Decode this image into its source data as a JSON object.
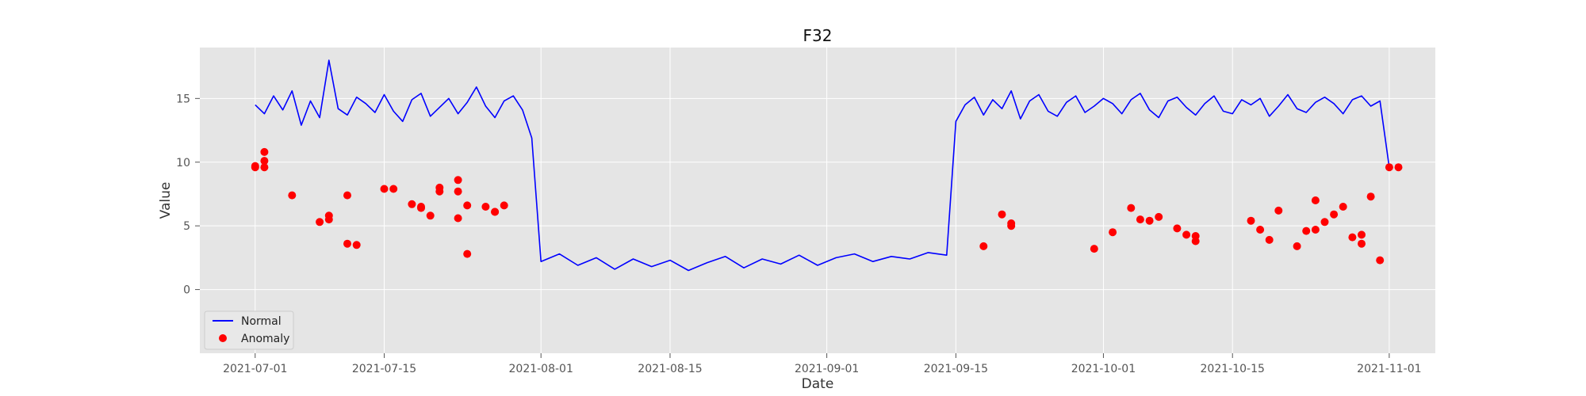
{
  "chart_data": {
    "type": "line",
    "title": "F32",
    "xlabel": "Date",
    "ylabel": "Value",
    "x_axis": "date",
    "xlim": [
      "2021-06-25",
      "2021-11-06"
    ],
    "ylim": [
      -5,
      19
    ],
    "grid": true,
    "legend_position": "bottom-left",
    "background_color": "#e5e5e5",
    "x_ticks": [
      "2021-07-01",
      "2021-07-15",
      "2021-08-01",
      "2021-08-15",
      "2021-09-01",
      "2021-09-15",
      "2021-10-01",
      "2021-10-15",
      "2021-11-01"
    ],
    "y_ticks": [
      0,
      5,
      10,
      15
    ],
    "series": [
      {
        "name": "Normal",
        "kind": "line",
        "color": "#0000ff",
        "x": [
          "2021-07-01",
          "2021-07-02",
          "2021-07-03",
          "2021-07-04",
          "2021-07-05",
          "2021-07-06",
          "2021-07-07",
          "2021-07-08",
          "2021-07-09",
          "2021-07-10",
          "2021-07-11",
          "2021-07-12",
          "2021-07-13",
          "2021-07-14",
          "2021-07-15",
          "2021-07-16",
          "2021-07-17",
          "2021-07-18",
          "2021-07-19",
          "2021-07-20",
          "2021-07-21",
          "2021-07-22",
          "2021-07-23",
          "2021-07-24",
          "2021-07-25",
          "2021-07-26",
          "2021-07-27",
          "2021-07-28",
          "2021-07-29",
          "2021-07-30",
          "2021-07-31",
          "2021-08-01",
          "2021-08-03",
          "2021-08-05",
          "2021-08-07",
          "2021-08-09",
          "2021-08-11",
          "2021-08-13",
          "2021-08-15",
          "2021-08-17",
          "2021-08-19",
          "2021-08-21",
          "2021-08-23",
          "2021-08-25",
          "2021-08-27",
          "2021-08-29",
          "2021-08-31",
          "2021-09-02",
          "2021-09-04",
          "2021-09-06",
          "2021-09-08",
          "2021-09-10",
          "2021-09-12",
          "2021-09-14",
          "2021-09-15",
          "2021-09-16",
          "2021-09-17",
          "2021-09-18",
          "2021-09-19",
          "2021-09-20",
          "2021-09-21",
          "2021-09-22",
          "2021-09-23",
          "2021-09-24",
          "2021-09-25",
          "2021-09-26",
          "2021-09-27",
          "2021-09-28",
          "2021-09-29",
          "2021-09-30",
          "2021-10-01",
          "2021-10-02",
          "2021-10-03",
          "2021-10-04",
          "2021-10-05",
          "2021-10-06",
          "2021-10-07",
          "2021-10-08",
          "2021-10-09",
          "2021-10-10",
          "2021-10-11",
          "2021-10-12",
          "2021-10-13",
          "2021-10-14",
          "2021-10-15",
          "2021-10-16",
          "2021-10-17",
          "2021-10-18",
          "2021-10-19",
          "2021-10-20",
          "2021-10-21",
          "2021-10-22",
          "2021-10-23",
          "2021-10-24",
          "2021-10-25",
          "2021-10-26",
          "2021-10-27",
          "2021-10-28",
          "2021-10-29",
          "2021-10-30",
          "2021-10-31",
          "2021-11-01"
        ],
        "y": [
          14.5,
          13.8,
          15.2,
          14.1,
          15.6,
          12.9,
          14.8,
          13.5,
          18.0,
          14.2,
          13.7,
          15.1,
          14.6,
          13.9,
          15.3,
          14.0,
          13.2,
          14.9,
          15.4,
          13.6,
          14.3,
          15.0,
          13.8,
          14.7,
          15.9,
          14.4,
          13.5,
          14.8,
          15.2,
          14.1,
          11.9,
          2.2,
          2.8,
          1.9,
          2.5,
          1.6,
          2.4,
          1.8,
          2.3,
          1.5,
          2.1,
          2.6,
          1.7,
          2.4,
          2.0,
          2.7,
          1.9,
          2.5,
          2.8,
          2.2,
          2.6,
          2.4,
          2.9,
          2.7,
          13.2,
          14.5,
          15.1,
          13.7,
          14.9,
          14.2,
          15.6,
          13.4,
          14.8,
          15.3,
          14.0,
          13.6,
          14.7,
          15.2,
          13.9,
          14.4,
          15.0,
          14.6,
          13.8,
          14.9,
          15.4,
          14.1,
          13.5,
          14.8,
          15.1,
          14.3,
          13.7,
          14.6,
          15.2,
          14.0,
          13.8,
          14.9,
          14.5,
          15.0,
          13.6,
          14.4,
          15.3,
          14.2,
          13.9,
          14.7,
          15.1,
          14.6,
          13.8,
          14.9,
          15.2,
          14.4,
          14.8,
          9.6
        ]
      },
      {
        "name": "Anomaly",
        "kind": "scatter",
        "color": "#ff0000",
        "x": [
          "2021-07-01",
          "2021-07-01",
          "2021-07-02",
          "2021-07-02",
          "2021-07-02",
          "2021-07-05",
          "2021-07-08",
          "2021-07-09",
          "2021-07-09",
          "2021-07-11",
          "2021-07-11",
          "2021-07-12",
          "2021-07-15",
          "2021-07-16",
          "2021-07-18",
          "2021-07-19",
          "2021-07-19",
          "2021-07-20",
          "2021-07-21",
          "2021-07-21",
          "2021-07-23",
          "2021-07-23",
          "2021-07-23",
          "2021-07-24",
          "2021-07-24",
          "2021-07-26",
          "2021-07-27",
          "2021-07-27",
          "2021-07-28",
          "2021-09-18",
          "2021-09-20",
          "2021-09-21",
          "2021-09-21",
          "2021-09-30",
          "2021-10-02",
          "2021-10-04",
          "2021-10-05",
          "2021-10-06",
          "2021-10-07",
          "2021-10-09",
          "2021-10-10",
          "2021-10-11",
          "2021-10-11",
          "2021-10-17",
          "2021-10-18",
          "2021-10-19",
          "2021-10-20",
          "2021-10-22",
          "2021-10-23",
          "2021-10-24",
          "2021-10-24",
          "2021-10-25",
          "2021-10-26",
          "2021-10-27",
          "2021-10-28",
          "2021-10-29",
          "2021-10-29",
          "2021-10-30",
          "2021-10-31",
          "2021-11-01",
          "2021-11-02"
        ],
        "y": [
          9.6,
          9.7,
          9.6,
          10.1,
          10.8,
          7.4,
          5.3,
          5.8,
          5.5,
          3.6,
          7.4,
          3.5,
          7.9,
          7.9,
          6.7,
          6.5,
          6.4,
          5.8,
          7.7,
          8.0,
          5.6,
          8.6,
          7.7,
          2.8,
          6.6,
          6.5,
          6.1,
          6.1,
          6.6,
          3.4,
          5.9,
          5.0,
          5.2,
          3.2,
          4.5,
          6.4,
          5.5,
          5.4,
          5.7,
          4.8,
          4.3,
          4.2,
          3.8,
          5.4,
          4.7,
          3.9,
          6.2,
          3.4,
          4.6,
          4.7,
          7.0,
          5.3,
          5.9,
          6.5,
          4.1,
          3.6,
          4.3,
          7.3,
          2.3,
          9.6,
          9.6
        ]
      }
    ]
  }
}
